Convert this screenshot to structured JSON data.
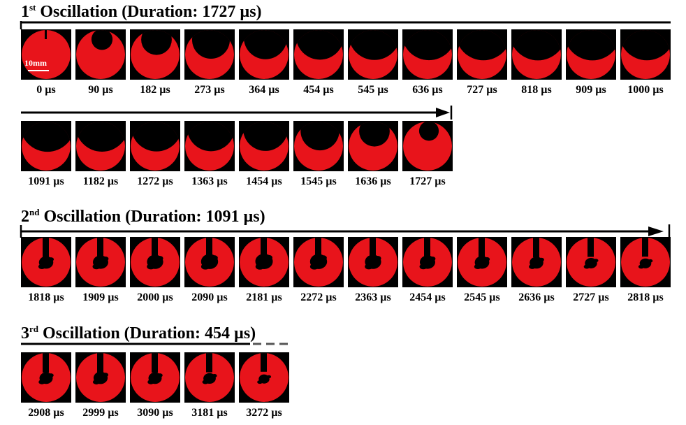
{
  "colors": {
    "droplet": "#e8141b",
    "droplet_dark": "#b80e12",
    "background": "#000000",
    "arrow": "#000000",
    "dashed": "#555555"
  },
  "scale_bar": {
    "label": "10mm"
  },
  "sections": [
    {
      "id": "osc1",
      "heading": {
        "number": "1",
        "suffix": "st",
        "text": "Oscillation (Duration: 1727 µs)"
      },
      "rows": [
        [
          {
            "label": "0 µs",
            "cavity": 0.0
          },
          {
            "label": "90 µs",
            "cavity": 0.15
          },
          {
            "label": "182 µs",
            "cavity": 0.35
          },
          {
            "label": "273 µs",
            "cavity": 0.5
          },
          {
            "label": "364 µs",
            "cavity": 0.62
          },
          {
            "label": "454 µs",
            "cavity": 0.72
          },
          {
            "label": "545 µs",
            "cavity": 0.8
          },
          {
            "label": "636 µs",
            "cavity": 0.85
          },
          {
            "label": "727 µs",
            "cavity": 0.88
          },
          {
            "label": "818 µs",
            "cavity": 0.9
          },
          {
            "label": "909 µs",
            "cavity": 0.9
          },
          {
            "label": "1000 µs",
            "cavity": 0.88
          }
        ],
        [
          {
            "label": "1091 µs",
            "cavity": 0.86
          },
          {
            "label": "1182 µs",
            "cavity": 0.83
          },
          {
            "label": "1272 µs",
            "cavity": 0.78
          },
          {
            "label": "1363 µs",
            "cavity": 0.72
          },
          {
            "label": "1454 µs",
            "cavity": 0.65
          },
          {
            "label": "1545 µs",
            "cavity": 0.52
          },
          {
            "label": "1636 µs",
            "cavity": 0.35
          },
          {
            "label": "1727 µs",
            "cavity": 0.12
          }
        ]
      ]
    },
    {
      "id": "osc2",
      "heading": {
        "number": "2",
        "suffix": "nd",
        "text": "Oscillation (Duration: 1091 µs)"
      },
      "rows": [
        [
          {
            "label": "1818 µs",
            "blob": 0.35
          },
          {
            "label": "1909 µs",
            "blob": 0.4
          },
          {
            "label": "2000 µs",
            "blob": 0.44
          },
          {
            "label": "2090 µs",
            "blob": 0.48
          },
          {
            "label": "2181 µs",
            "blob": 0.5
          },
          {
            "label": "2272 µs",
            "blob": 0.48
          },
          {
            "label": "2363 µs",
            "blob": 0.44
          },
          {
            "label": "2454 µs",
            "blob": 0.4
          },
          {
            "label": "2545 µs",
            "blob": 0.36
          },
          {
            "label": "2636 µs",
            "blob": 0.32
          },
          {
            "label": "2727 µs",
            "blob": 0.25
          },
          {
            "label": "2818 µs",
            "blob": 0.22
          }
        ]
      ]
    },
    {
      "id": "osc3",
      "heading": {
        "number": "3",
        "suffix": "rd",
        "text": "Oscillation (Duration: 454 µs)"
      },
      "rows": [
        [
          {
            "label": "2908 µs",
            "blob": 0.3
          },
          {
            "label": "2999 µs",
            "blob": 0.34
          },
          {
            "label": "3090 µs",
            "blob": 0.3
          },
          {
            "label": "3181 µs",
            "blob": 0.26
          },
          {
            "label": "3272 µs",
            "blob": 0.18
          }
        ]
      ]
    }
  ]
}
